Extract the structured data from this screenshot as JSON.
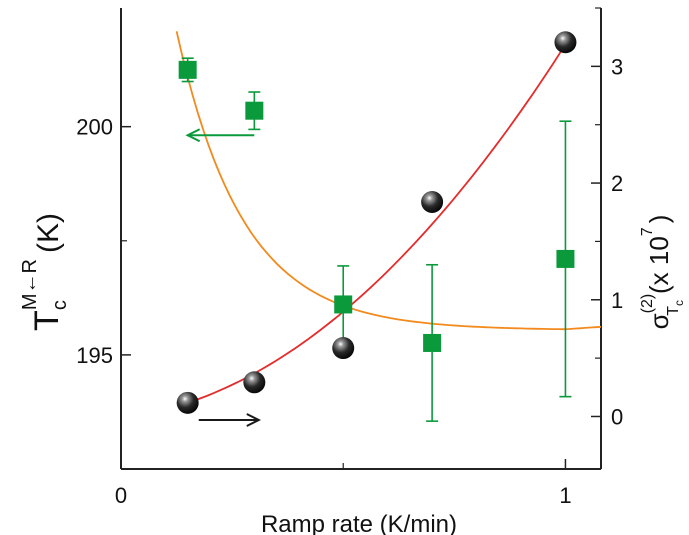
{
  "chart_data": {
    "type": "scatter",
    "xlabel": "Ramp rate (K/min)",
    "ylabel_left": {
      "main": "T",
      "sup": "M",
      "arrow": "←",
      "sup2": "R",
      "sub": "c",
      "unit": "(K)"
    },
    "ylabel_right": {
      "sigma": "σ",
      "sup": "(2)",
      "sub": "T",
      "subsub": "c",
      "text": "(x 10",
      "exp": "7",
      "close": ")"
    },
    "x_axis": {
      "range": [
        0,
        1.08
      ],
      "ticks": [
        0,
        1
      ],
      "tick_labels": [
        "0",
        "1"
      ],
      "minor_ticks": [
        0.5
      ]
    },
    "y_left": {
      "range": [
        192.5,
        202.6
      ],
      "ticks": [
        195,
        200
      ],
      "tick_labels": [
        "195",
        "200"
      ],
      "minor_ticks": [
        197.5
      ]
    },
    "y_right": {
      "range": [
        -0.45,
        3.5
      ],
      "ticks": [
        0,
        1,
        2,
        3
      ],
      "tick_labels": [
        "0",
        "1",
        "2",
        "3"
      ]
    },
    "grid": false,
    "series": [
      {
        "axis": "left",
        "marker": "sphere",
        "color": "#1a1a1a",
        "x": [
          0.15,
          0.3,
          0.5,
          0.7,
          1.0
        ],
        "y": [
          193.95,
          194.4,
          195.15,
          198.35,
          201.85
        ]
      },
      {
        "axis": "right",
        "marker": "square",
        "color": "#0a9a3c",
        "x": [
          0.15,
          0.3,
          0.5,
          0.7,
          1.0
        ],
        "y": [
          2.97,
          2.62,
          0.96,
          0.63,
          1.35
        ],
        "err": [
          0.1,
          0.16,
          0.33,
          0.67,
          1.18
        ]
      }
    ],
    "fits": [
      {
        "axis": "left",
        "color": "#e52b2b",
        "x": [
          0.15,
          1.0
        ],
        "y": [
          193.95,
          201.8
        ]
      },
      {
        "axis": "right",
        "color": "#f28a1d",
        "x": [
          0.125,
          1.08
        ],
        "y": [
          3.3,
          0.75
        ]
      }
    ],
    "annotations": [
      {
        "type": "arrow",
        "direction": "left",
        "color": "#0a9a3c",
        "x": [
          0.3,
          0.15
        ],
        "y_right": 2.41
      },
      {
        "type": "arrow",
        "direction": "right",
        "color": "#1a1a1a",
        "x": [
          0.175,
          0.31
        ],
        "y_right": -0.03
      }
    ]
  }
}
